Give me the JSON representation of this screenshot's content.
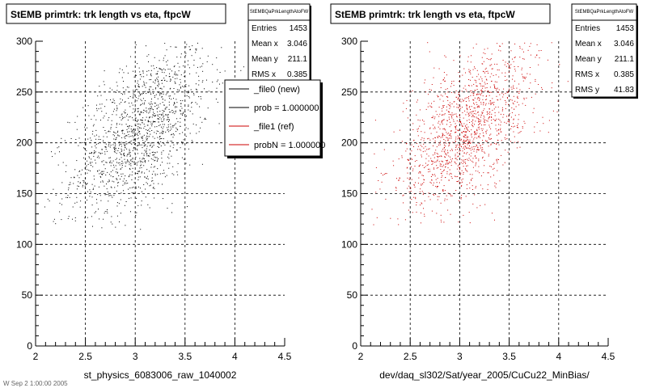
{
  "canvas_footer": "W Sep 2 1:00:00 2005",
  "chart_data": [
    {
      "type": "scatter",
      "title": "StEMB primtrk: trk length vs eta, ftpcW",
      "xlabel": "st_physics_6083006_raw_1040002",
      "ylabel": "",
      "xlim": [
        2,
        4.5
      ],
      "ylim": [
        0,
        300
      ],
      "xticks": [
        "2",
        "2.5",
        "3",
        "3.5",
        "4",
        "4.5"
      ],
      "yticks": [
        "0",
        "50",
        "100",
        "150",
        "200",
        "250",
        "300"
      ],
      "grid": true,
      "series": [
        {
          "name": "_file0 (new)",
          "color": "#000000",
          "n_points": 1453,
          "mean_x": 3.046,
          "mean_y": 211.1,
          "rms_x": 0.385,
          "rms_y": 41.83
        }
      ],
      "stats": {
        "title": "StEMBQaPrkLengthAtoFW",
        "rows": [
          {
            "label": "Entries",
            "value": "1453"
          },
          {
            "label": "Mean x",
            "value": "3.046"
          },
          {
            "label": "Mean y",
            "value": "211.1"
          },
          {
            "label": "RMS x",
            "value": "0.385"
          },
          {
            "label": "RMS y",
            "value": "41.83"
          }
        ]
      },
      "legend": {
        "placement": "right",
        "entries": [
          {
            "label": "_file0 (new)",
            "color": "#000000"
          },
          {
            "label": "prob = 1.000000",
            "color": "#000000"
          },
          {
            "label": "_file1 (ref)",
            "color": "#cc0000"
          },
          {
            "label": "probN = 1.000000",
            "color": "#cc0000"
          }
        ]
      }
    },
    {
      "type": "scatter",
      "title": "StEMB primtrk: trk length vs eta, ftpcW",
      "xlabel": "dev/daq_sl302/Sat/year_2005/CuCu22_MinBias/",
      "ylabel": "",
      "xlim": [
        2,
        4.5
      ],
      "ylim": [
        0,
        300
      ],
      "xticks": [
        "2",
        "2.5",
        "3",
        "3.5",
        "4",
        "4.5"
      ],
      "yticks": [
        "0",
        "50",
        "100",
        "150",
        "200",
        "250",
        "300"
      ],
      "grid": true,
      "series": [
        {
          "name": "_file1 (ref)",
          "color": "#cc0000",
          "n_points": 1453,
          "mean_x": 3.046,
          "mean_y": 211.1,
          "rms_x": 0.385,
          "rms_y": 41.83
        }
      ],
      "stats": {
        "title": "StEMBQaPrkLengthAtoFW",
        "rows": [
          {
            "label": "Entries",
            "value": "1453"
          },
          {
            "label": "Mean x",
            "value": "3.046"
          },
          {
            "label": "Mean y",
            "value": "211.1"
          },
          {
            "label": "RMS x",
            "value": "0.385"
          },
          {
            "label": "RMS y",
            "value": "41.83"
          }
        ]
      }
    }
  ]
}
